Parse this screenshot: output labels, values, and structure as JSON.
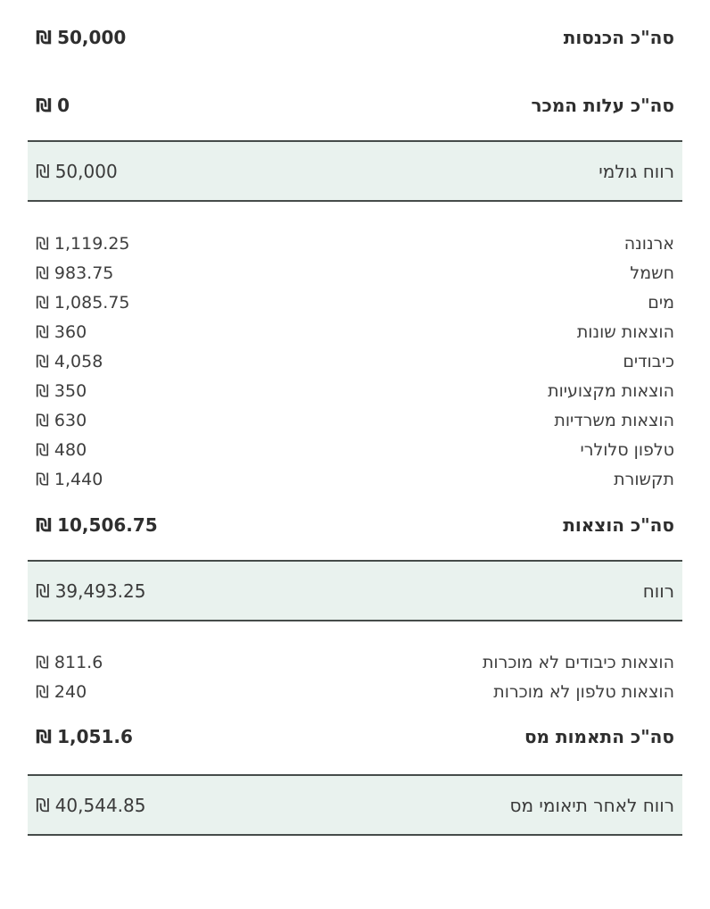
{
  "currency_symbol": "₪",
  "colors": {
    "highlight_background": "#e9f2ee",
    "band_border": "#464c4a",
    "text": "#3c3c3c"
  },
  "rows": [
    {
      "label": "סה\"כ הכנסות",
      "amount": "50,000"
    },
    {
      "label": "סה\"כ עלות המכר",
      "amount": "0"
    },
    {
      "label": "רווח גולמי",
      "amount": "50,000"
    },
    {
      "label": "ארנונה",
      "amount": "1,119.25"
    },
    {
      "label": "חשמל",
      "amount": "983.75"
    },
    {
      "label": "מים",
      "amount": "1,085.75"
    },
    {
      "label": "הוצאות שונות",
      "amount": "360"
    },
    {
      "label": "כיבודים",
      "amount": "4,058"
    },
    {
      "label": "הוצאות מקצועיות",
      "amount": "350"
    },
    {
      "label": "הוצאות משרדיות",
      "amount": "630"
    },
    {
      "label": "טלפון סלולרי",
      "amount": "480"
    },
    {
      "label": "תקשורת",
      "amount": "1,440"
    },
    {
      "label": "סה\"כ הוצאות",
      "amount": "10,506.75"
    },
    {
      "label": "רווח",
      "amount": "39,493.25"
    },
    {
      "label": "הוצאות כיבודים לא מוכרות",
      "amount": "811.6"
    },
    {
      "label": "הוצאות טלפון לא מוכרות",
      "amount": "240"
    },
    {
      "label": "סה\"כ התאמות מס",
      "amount": "1,051.6"
    },
    {
      "label": "רווח לאחר תיאומי מס",
      "amount": "40,544.85"
    }
  ]
}
